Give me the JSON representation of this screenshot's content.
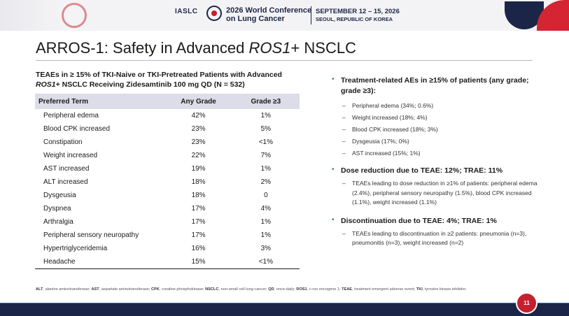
{
  "header": {
    "org": "IASLC",
    "conference_line1": "2026 World Conference",
    "conference_line2": "on Lung Cancer",
    "dates": "SEPTEMBER 12 – 15, 2026",
    "location": "SEOUL, REPUBLIC OF KOREA"
  },
  "slide": {
    "title_prefix": "ARROS-1: Safety in Advanced ",
    "title_italic": "ROS1",
    "title_suffix": "+ NSCLC",
    "page_number": "11"
  },
  "table": {
    "caption_line1": "TEAEs in ≥ 15% of TKI-Naive or TKI-Pretreated Patients with Advanced",
    "caption_italic": "ROS1",
    "caption_line2_rest": "+ NSCLC Receiving Zidesamtinib 100 mg QD (N = 532)",
    "headers": [
      "Preferred Term",
      "Any Grade",
      "Grade ≥3"
    ],
    "rows": [
      [
        "Peripheral edema",
        "42%",
        "1%"
      ],
      [
        "Blood CPK increased",
        "23%",
        "5%"
      ],
      [
        "Constipation",
        "23%",
        "<1%"
      ],
      [
        "Weight increased",
        "22%",
        "7%"
      ],
      [
        "AST increased",
        "19%",
        "1%"
      ],
      [
        "ALT increased",
        "18%",
        "2%"
      ],
      [
        "Dysgeusia",
        "18%",
        "0"
      ],
      [
        "Dyspnea",
        "17%",
        "4%"
      ],
      [
        "Arthralgia",
        "17%",
        "1%"
      ],
      [
        "Peripheral sensory neuropathy",
        "17%",
        "1%"
      ],
      [
        "Hypertriglyceridemia",
        "16%",
        "3%"
      ],
      [
        "Headache",
        "15%",
        "<1%"
      ]
    ]
  },
  "bullets": [
    {
      "head": "Treatment-related AEs in ≥15% of patients (any grade; grade ≥3):",
      "subs": [
        "Peripheral edema (34%; 0.6%)",
        "Weight increased (18%; 4%)",
        "Blood CPK increased (18%; 3%)",
        "Dysgeusia (17%; 0%)",
        "AST increased (15%; 1%)"
      ]
    },
    {
      "head": "Dose reduction due to TEAE: 12%; TRAE: 11%",
      "subs": [
        "TEAEs leading to dose reduction in ≥1% of patients: peripheral edema (2.4%), peripheral sensory neuropathy (1.5%), blood CPK increased (1.1%), weight increased (1.1%)"
      ]
    },
    {
      "head": "Discontinuation due to TEAE: 4%; TRAE: 1%",
      "subs": [
        "TEAEs leading to discontinuation in ≥2 patients: pneumonia (n=3), pneumonitis (n=3), weight increased (n=2)"
      ]
    }
  ],
  "footnote": [
    [
      "ALT",
      ", alanine aminotransferase; "
    ],
    [
      "AST",
      ", aspartate aminotransferase; "
    ],
    [
      "CPK",
      ", creatine phosphokinase; "
    ],
    [
      "NSCLC",
      ", non-small cell lung cancer; "
    ],
    [
      "QD",
      ", once-daily; "
    ],
    [
      "ROS1",
      ", c-ros oncogene 1; "
    ],
    [
      "TEAE",
      ", treatment emergent adverse event; "
    ],
    [
      "TKI",
      ", tyrosine kinase inhibitor."
    ]
  ],
  "colors": {
    "navy": "#1b2547",
    "red": "#c4202d",
    "table_header_bg": "#dcdde8",
    "bullet_blue": "#3a72b8"
  }
}
